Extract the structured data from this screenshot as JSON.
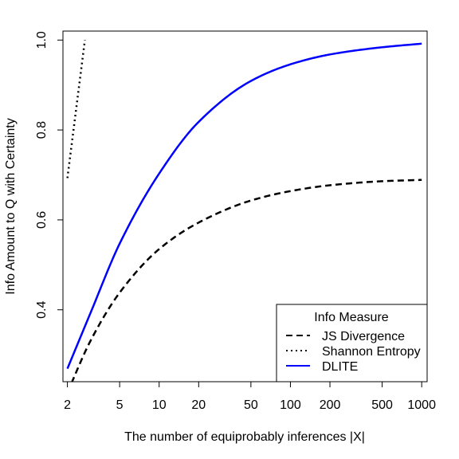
{
  "chart_data": {
    "type": "line",
    "title": "",
    "xlabel": "The number of equiprobably inferences |X|",
    "ylabel": "Info Amount to Q with Certainty",
    "x_scale": "log",
    "xlim": [
      1.85,
      1100
    ],
    "ylim": [
      0.24,
      1.02
    ],
    "x_ticks": [
      2,
      5,
      10,
      20,
      50,
      100,
      200,
      500,
      1000
    ],
    "x_tick_labels": [
      "2",
      "5",
      "10",
      "20",
      "50",
      "100",
      "200",
      "500",
      "1000"
    ],
    "y_ticks": [
      0.4,
      0.6,
      0.8,
      1.0
    ],
    "y_tick_labels": [
      "0.4",
      "0.6",
      "0.8",
      "1.0"
    ],
    "grid": false,
    "legend": {
      "title": "Info Measure",
      "position": "bottom-right",
      "entries": [
        "JS Divergence",
        "Shannon Entropy",
        "DLITE"
      ]
    },
    "series": [
      {
        "name": "JS Divergence",
        "color": "#000000",
        "line_style": "dashed",
        "x": [
          2,
          3,
          5,
          10,
          20,
          50,
          100,
          200,
          500,
          1000
        ],
        "y": [
          0.216,
          0.331,
          0.438,
          0.535,
          0.594,
          0.643,
          0.664,
          0.677,
          0.686,
          0.689
        ]
      },
      {
        "name": "Shannon Entropy",
        "color": "#000000",
        "line_style": "dotted",
        "x": [
          2,
          2.5,
          2.718
        ],
        "y": [
          0.693,
          0.916,
          1.0
        ]
      },
      {
        "name": "DLITE",
        "color": "#0000ff",
        "line_style": "solid",
        "x": [
          2,
          3,
          5,
          10,
          20,
          50,
          100,
          200,
          500,
          1000
        ],
        "y": [
          0.269,
          0.393,
          0.547,
          0.703,
          0.818,
          0.909,
          0.946,
          0.968,
          0.984,
          0.992
        ]
      }
    ]
  }
}
